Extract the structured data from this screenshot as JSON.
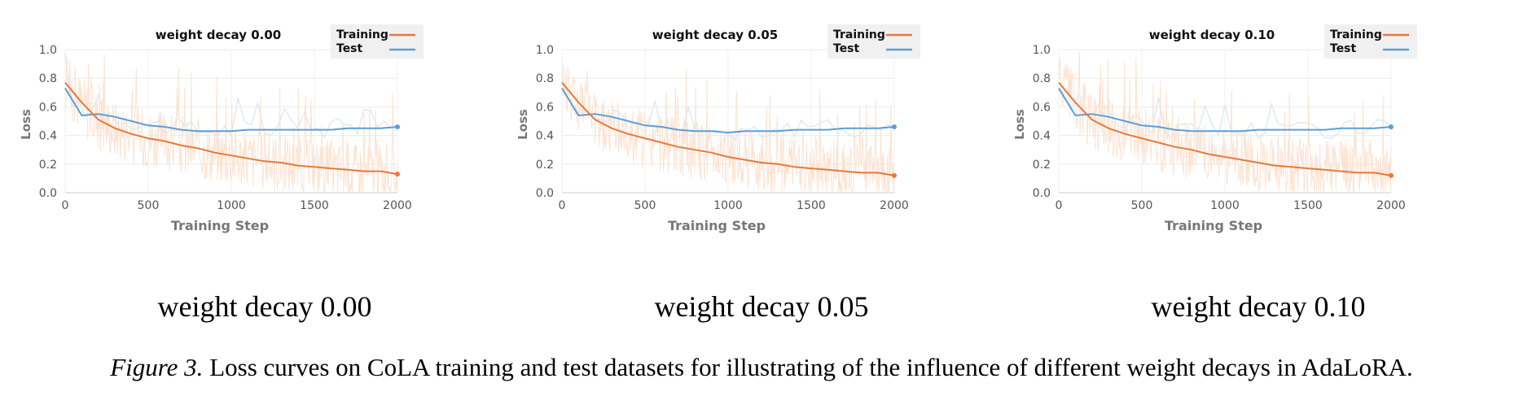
{
  "caption": {
    "label": "Figure 3.",
    "text": "Loss curves on CoLA training and test datasets for illustrating of the influence of different weight decays in AdaLoRA."
  },
  "colors": {
    "training": "#e8793a",
    "test": "#5a9fd8",
    "training_raw": "#fbe3d2",
    "test_raw": "#d9e8f5"
  },
  "chart_data": [
    {
      "type": "line",
      "title": "weight decay 0.00",
      "subcaption": "weight decay 0.00",
      "xlabel": "Training Step",
      "ylabel": "Loss",
      "xlim": [
        0,
        2000
      ],
      "ylim": [
        0,
        1.0
      ],
      "xticks": [
        "0",
        "500",
        "1000",
        "1500",
        "2000"
      ],
      "yticks": [
        "0.0",
        "0.2",
        "0.4",
        "0.6",
        "0.8",
        "1.0"
      ],
      "legend_position": "top-right",
      "grid": true,
      "series": [
        {
          "name": "Training",
          "x": [
            0,
            50,
            100,
            150,
            200,
            300,
            400,
            500,
            600,
            700,
            800,
            900,
            1000,
            1100,
            1200,
            1300,
            1400,
            1500,
            1600,
            1700,
            1800,
            1900,
            2000
          ],
          "values": [
            0.77,
            0.7,
            0.63,
            0.57,
            0.51,
            0.45,
            0.41,
            0.38,
            0.36,
            0.33,
            0.31,
            0.28,
            0.26,
            0.24,
            0.22,
            0.21,
            0.19,
            0.18,
            0.17,
            0.16,
            0.15,
            0.15,
            0.13
          ]
        },
        {
          "name": "Test",
          "x": [
            0,
            100,
            200,
            300,
            400,
            500,
            600,
            700,
            800,
            900,
            1000,
            1100,
            1200,
            1300,
            1400,
            1500,
            1600,
            1700,
            1800,
            1900,
            2000
          ],
          "values": [
            0.73,
            0.54,
            0.55,
            0.53,
            0.5,
            0.47,
            0.46,
            0.44,
            0.43,
            0.43,
            0.43,
            0.44,
            0.44,
            0.44,
            0.44,
            0.44,
            0.44,
            0.45,
            0.45,
            0.45,
            0.46
          ]
        }
      ]
    },
    {
      "type": "line",
      "title": "weight decay 0.05",
      "subcaption": "weight decay 0.05",
      "xlabel": "Training Step",
      "ylabel": "Loss",
      "xlim": [
        0,
        2000
      ],
      "ylim": [
        0,
        1.0
      ],
      "xticks": [
        "0",
        "500",
        "1000",
        "1500",
        "2000"
      ],
      "yticks": [
        "0.0",
        "0.2",
        "0.4",
        "0.6",
        "0.8",
        "1.0"
      ],
      "legend_position": "top-right",
      "grid": true,
      "series": [
        {
          "name": "Training",
          "x": [
            0,
            50,
            100,
            150,
            200,
            300,
            400,
            500,
            600,
            700,
            800,
            900,
            1000,
            1100,
            1200,
            1300,
            1400,
            1500,
            1600,
            1700,
            1800,
            1900,
            2000
          ],
          "values": [
            0.77,
            0.7,
            0.63,
            0.57,
            0.51,
            0.45,
            0.41,
            0.38,
            0.35,
            0.32,
            0.3,
            0.28,
            0.25,
            0.23,
            0.21,
            0.2,
            0.18,
            0.17,
            0.16,
            0.15,
            0.14,
            0.14,
            0.12
          ]
        },
        {
          "name": "Test",
          "x": [
            0,
            100,
            200,
            300,
            400,
            500,
            600,
            700,
            800,
            900,
            1000,
            1100,
            1200,
            1300,
            1400,
            1500,
            1600,
            1700,
            1800,
            1900,
            2000
          ],
          "values": [
            0.73,
            0.54,
            0.55,
            0.53,
            0.5,
            0.47,
            0.46,
            0.44,
            0.43,
            0.43,
            0.42,
            0.43,
            0.43,
            0.43,
            0.44,
            0.44,
            0.44,
            0.45,
            0.45,
            0.45,
            0.46
          ]
        }
      ]
    },
    {
      "type": "line",
      "title": "weight decay 0.10",
      "subcaption": "weight decay 0.10",
      "xlabel": "Training Step",
      "ylabel": "Loss",
      "xlim": [
        0,
        2000
      ],
      "ylim": [
        0,
        1.0
      ],
      "xticks": [
        "0",
        "500",
        "1000",
        "1500",
        "2000"
      ],
      "yticks": [
        "0.0",
        "0.2",
        "0.4",
        "0.6",
        "0.8",
        "1.0"
      ],
      "legend_position": "top-right",
      "grid": true,
      "series": [
        {
          "name": "Training",
          "x": [
            0,
            50,
            100,
            150,
            200,
            300,
            400,
            500,
            600,
            700,
            800,
            900,
            1000,
            1100,
            1200,
            1300,
            1400,
            1500,
            1600,
            1700,
            1800,
            1900,
            2000
          ],
          "values": [
            0.77,
            0.7,
            0.63,
            0.57,
            0.51,
            0.45,
            0.41,
            0.38,
            0.35,
            0.32,
            0.3,
            0.27,
            0.25,
            0.23,
            0.21,
            0.19,
            0.18,
            0.17,
            0.16,
            0.15,
            0.14,
            0.14,
            0.12
          ]
        },
        {
          "name": "Test",
          "x": [
            0,
            100,
            200,
            300,
            400,
            500,
            600,
            700,
            800,
            900,
            1000,
            1100,
            1200,
            1300,
            1400,
            1500,
            1600,
            1700,
            1800,
            1900,
            2000
          ],
          "values": [
            0.73,
            0.54,
            0.55,
            0.53,
            0.5,
            0.47,
            0.46,
            0.44,
            0.43,
            0.43,
            0.43,
            0.43,
            0.44,
            0.44,
            0.44,
            0.44,
            0.44,
            0.45,
            0.45,
            0.45,
            0.46
          ]
        }
      ]
    }
  ]
}
